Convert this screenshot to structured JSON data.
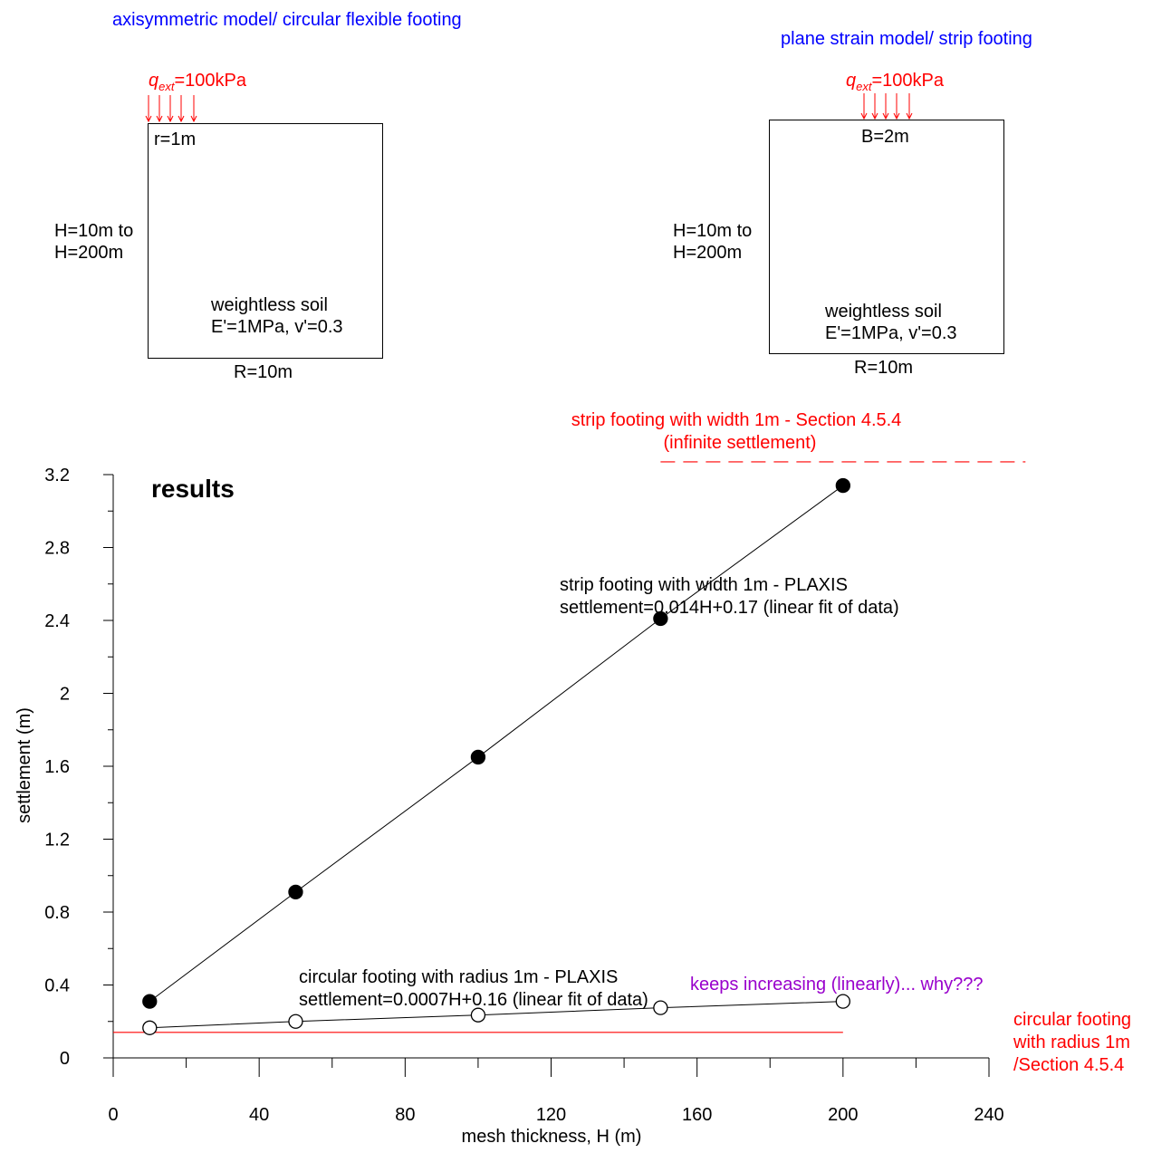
{
  "diagram_left": {
    "title": "axisymmetric model/ circular flexible footing",
    "load_symbol": "q",
    "load_sub": "ext",
    "load_value": "=100kPa",
    "footing": "r=1m",
    "height_line1": "H=10m to",
    "height_line2": "H=200m",
    "soil_line1": "weightless soil",
    "soil_line2": "E'=1MPa, v'=0.3",
    "radius": "R=10m"
  },
  "diagram_right": {
    "title": "plane strain model/ strip footing",
    "load_symbol": "q",
    "load_sub": "ext",
    "load_value": "=100kPa",
    "footing": "B=2m",
    "height_line1": "H=10m to",
    "height_line2": "H=200m",
    "soil_line1": "weightless soil",
    "soil_line2": "E'=1MPa, v'=0.3",
    "radius": "R=10m"
  },
  "colors": {
    "title": "#0000ff",
    "reference": "#ff0000",
    "note": "#9900cc",
    "data": "#000000"
  },
  "chart_data": {
    "type": "scatter",
    "title": "results",
    "xlabel": "mesh thickness, H (m)",
    "ylabel": "settlement (m)",
    "xlim": [
      0,
      240
    ],
    "ylim": [
      0,
      3.2
    ],
    "xticks": [
      0,
      40,
      80,
      120,
      160,
      200,
      240
    ],
    "yticks": [
      0,
      0.4,
      0.8,
      1.2,
      1.6,
      2,
      2.4,
      2.8,
      3.2
    ],
    "grid": false,
    "series": [
      {
        "marker": "filled-circle",
        "x": [
          10,
          50,
          100,
          150,
          200
        ],
        "y": [
          0.31,
          0.91,
          1.65,
          2.41,
          3.14
        ],
        "label_line1": "strip footing with width 1m - PLAXIS",
        "label_line2": "settlement=0.014H+0.17 (linear fit of data)"
      },
      {
        "marker": "open-circle",
        "x": [
          10,
          50,
          100,
          150,
          200
        ],
        "y": [
          0.165,
          0.2,
          0.235,
          0.275,
          0.31
        ],
        "label_line1": "circular footing with radius 1m - PLAXIS",
        "label_line2": "settlement=0.0007H+0.16 (linear fit of data)"
      }
    ],
    "reference_lines": [
      {
        "style": "dashed",
        "y": 3.27,
        "x_from": 150,
        "x_to": 250,
        "label_line1": "strip footing with width 1m - Section 4.5.4",
        "label_line2": "(infinite settlement)"
      },
      {
        "style": "solid",
        "y": 0.14,
        "x_from": 0,
        "x_to": 200,
        "label_line1": "circular footing",
        "label_line2": "with radius 1m",
        "label_line3": "/Section 4.5.4"
      }
    ],
    "annotation": "keeps increasing (linearly)... why???"
  }
}
